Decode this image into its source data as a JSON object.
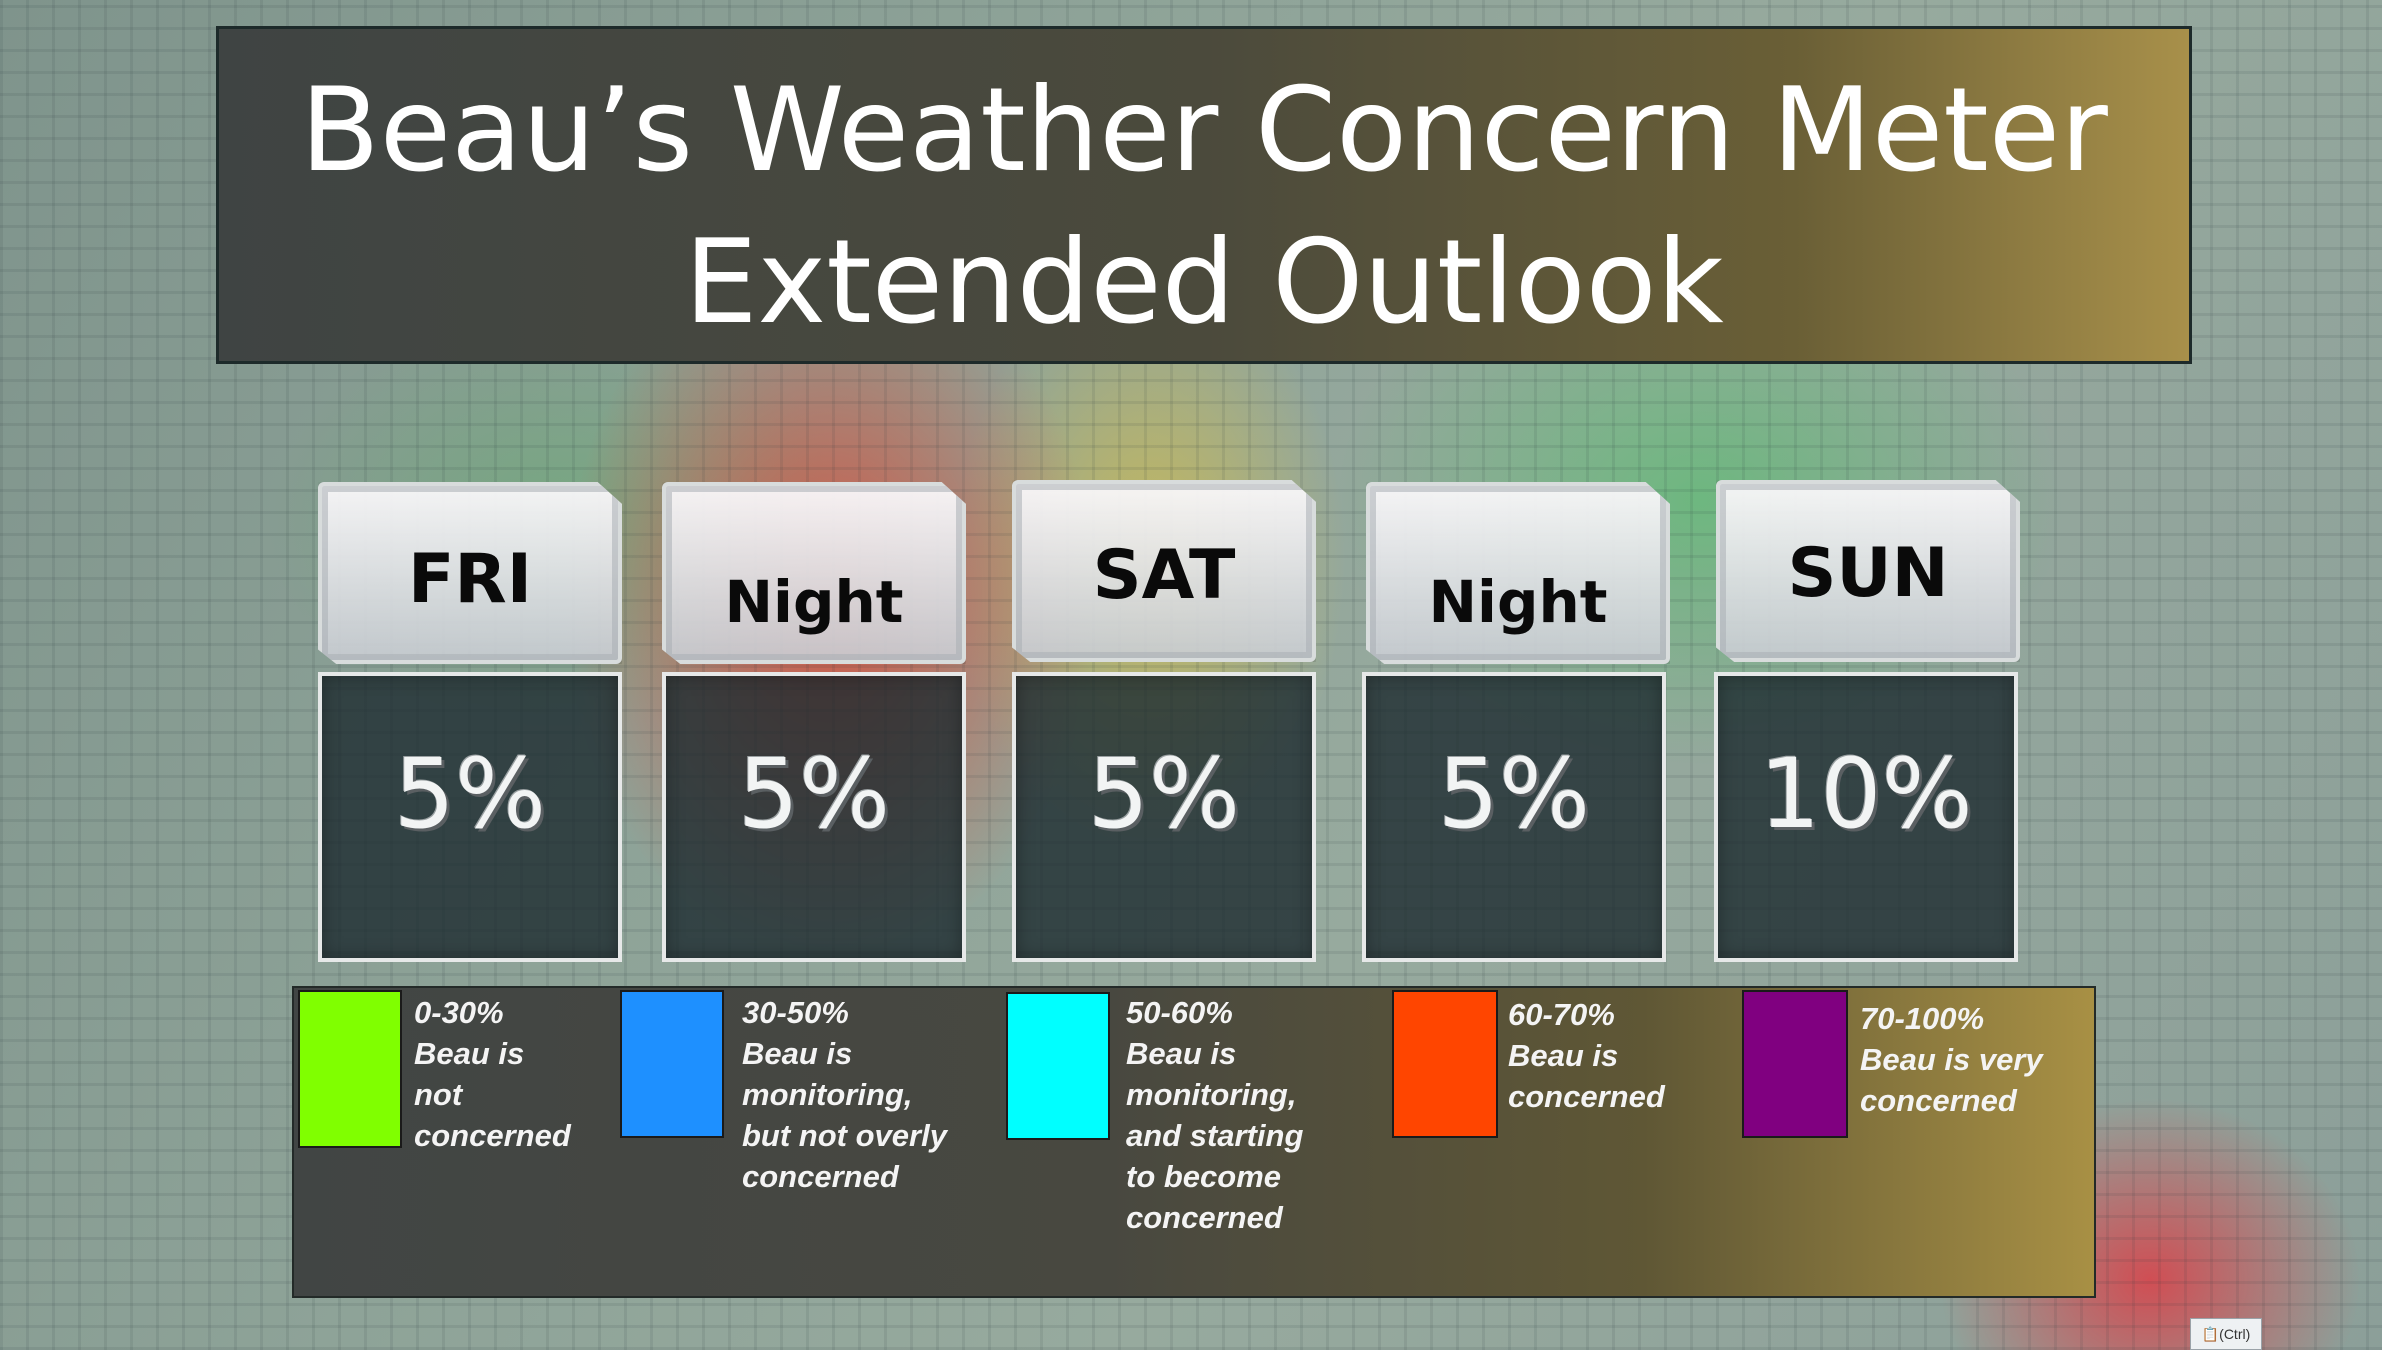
{
  "title": {
    "line1": "Beau’s Weather Concern Meter",
    "line2": "Extended Outlook"
  },
  "days": [
    {
      "label": "FRI",
      "value": "5%"
    },
    {
      "label": "Night",
      "value": "5%"
    },
    {
      "label": "SAT",
      "value": "5%"
    },
    {
      "label": "Night",
      "value": "5%"
    },
    {
      "label": "SUN",
      "value": "10%"
    }
  ],
  "legend": [
    {
      "range": "0-30%",
      "lines": [
        "Beau is",
        "not",
        "concerned"
      ],
      "color": "#80ff00"
    },
    {
      "range": "30-50%",
      "lines": [
        "Beau is",
        "monitoring,",
        "but not overly",
        "concerned"
      ],
      "color": "#1e90ff"
    },
    {
      "range": "50-60%",
      "lines": [
        "Beau is",
        "monitoring,",
        "and starting",
        "to become",
        "concerned"
      ],
      "color": "#00ffff"
    },
    {
      "range": "60-70%",
      "lines": [
        "Beau is",
        "concerned"
      ],
      "color": "#ff4500"
    },
    {
      "range": "70-100%",
      "lines": [
        "Beau is very",
        "concerned"
      ],
      "color": "#800080"
    }
  ],
  "paste_options": {
    "label": "(Ctrl)",
    "icon": "clipboard-icon"
  }
}
